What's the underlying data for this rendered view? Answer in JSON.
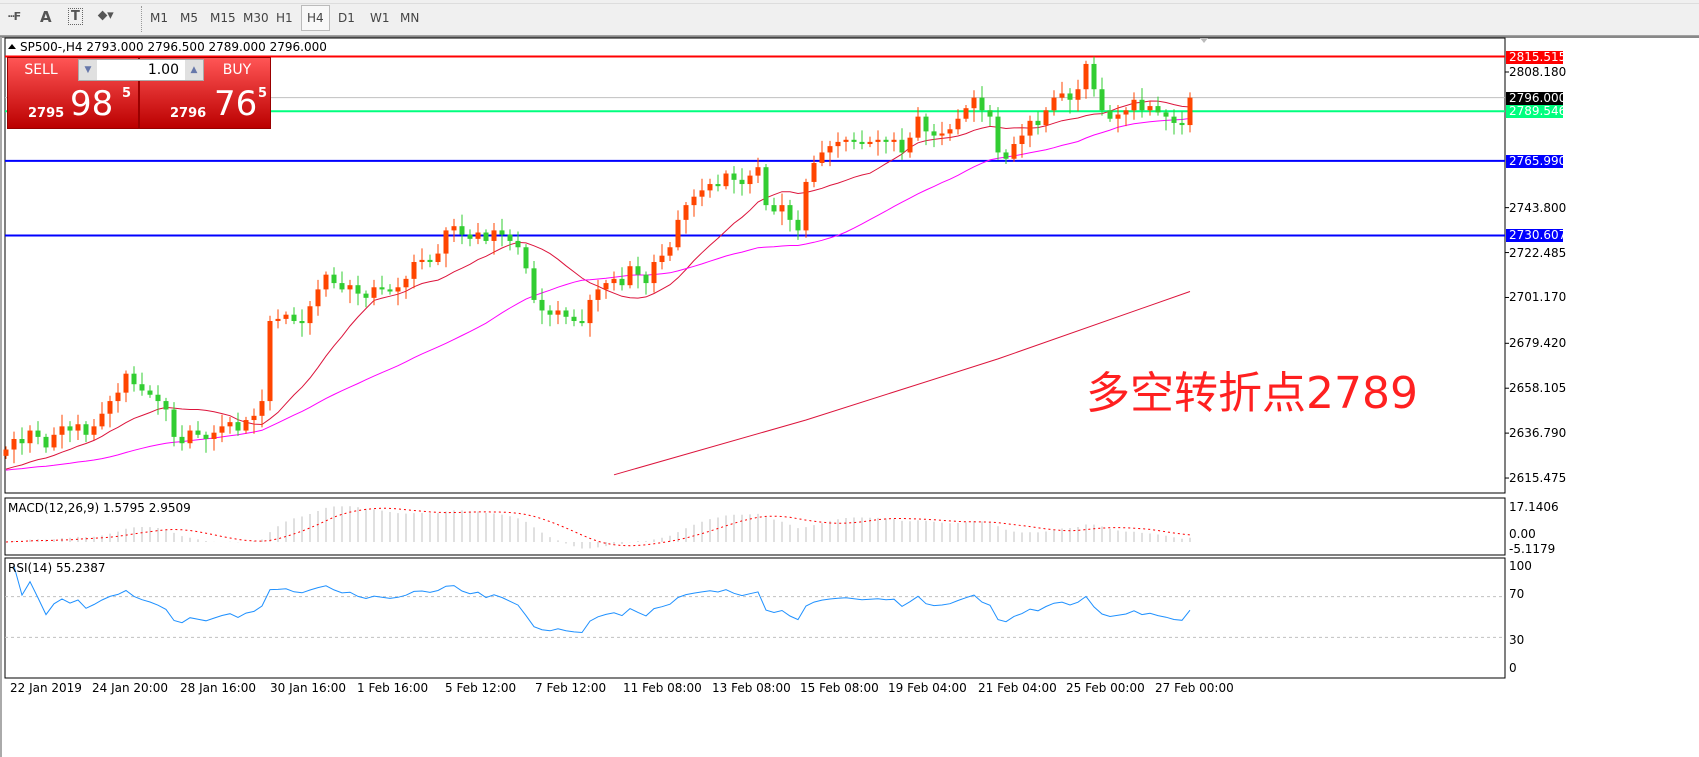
{
  "toolbar": {
    "icons": [
      "period-separator-icon",
      "text-icon",
      "text-label-icon",
      "arrows-icon"
    ],
    "text_icon_label": "A",
    "timeframes": [
      "M1",
      "M5",
      "M15",
      "M30",
      "H1",
      "H4",
      "D1",
      "W1",
      "MN"
    ],
    "active_timeframe": "H4"
  },
  "chart": {
    "title": "SP500-,H4  2793.000 2796.500 2789.000 2796.000",
    "annotation": "多空转折点2789",
    "colors": {
      "bull": "#ff4500",
      "bear": "#32cd32",
      "ma_fast": "#dc143c",
      "ma_mid": "#ff00ff",
      "ma_long": "#dc143c",
      "macd_signal": "#ff0000",
      "rsi": "#1e90ff"
    }
  },
  "trade_panel": {
    "sell_label": "SELL",
    "buy_label": "BUY",
    "quantity": "1.00",
    "sell_small": "2795",
    "sell_big": "98",
    "sell_sup": "5",
    "buy_small": "2796",
    "buy_big": "76",
    "buy_sup": "5"
  },
  "price_axis": {
    "ticks": [
      "2808.180",
      "2743.800",
      "2722.485",
      "2701.170",
      "2679.420",
      "2658.105",
      "2636.790",
      "2615.475"
    ],
    "levels": [
      {
        "label": "2815.515",
        "price": 2815.515,
        "color": "#ff0000"
      },
      {
        "label": "2796.000",
        "price": 2796.0,
        "color": "#000000",
        "line": "#c0c0c0"
      },
      {
        "label": "2789.546",
        "price": 2789.546,
        "color": "#00ff7f"
      },
      {
        "label": "2765.990",
        "price": 2765.99,
        "color": "#0000ff"
      },
      {
        "label": "2730.607",
        "price": 2730.607,
        "color": "#0000ff"
      }
    ]
  },
  "time_axis": [
    "22 Jan 2019",
    "24 Jan 20:00",
    "28 Jan 16:00",
    "30 Jan 16:00",
    "1 Feb 16:00",
    "5 Feb 12:00",
    "7 Feb 12:00",
    "11 Feb 08:00",
    "13 Feb 08:00",
    "15 Feb 08:00",
    "19 Feb 04:00",
    "21 Feb 04:00",
    "25 Feb 00:00",
    "27 Feb 00:00"
  ],
  "macd": {
    "title": "MACD(12,26,9) 1.5795 2.9509",
    "top_label": "17.1406",
    "zero_label": "0.00",
    "bottom_label": "-5.1179"
  },
  "rsi": {
    "title": "RSI(14) 55.2387",
    "levels": [
      "100",
      "70",
      "30",
      "0"
    ]
  },
  "chart_data": {
    "type": "candlestick",
    "symbol": "SP500-",
    "timeframe": "H4",
    "ylim": [
      2605,
      2822
    ],
    "closes": [
      2629,
      2634,
      2632,
      2638,
      2635,
      2630,
      2636,
      2640,
      2638,
      2641,
      2636,
      2640,
      2646,
      2652,
      2656,
      2665,
      2660,
      2657,
      2655,
      2652,
      2648,
      2635,
      2632,
      2638,
      2636,
      2634,
      2637,
      2640,
      2642,
      2638,
      2643,
      2645,
      2652,
      2690,
      2691,
      2693,
      2690,
      2689,
      2697,
      2705,
      2712,
      2708,
      2705,
      2707,
      2703,
      2701,
      2706,
      2705,
      2704,
      2706,
      2710,
      2718,
      2719,
      2718,
      2722,
      2733,
      2735,
      2731,
      2729,
      2732,
      2728,
      2733,
      2731,
      2728,
      2725,
      2715,
      2700,
      2695,
      2693,
      2695,
      2692,
      2690,
      2689,
      2700,
      2705,
      2708,
      2710,
      2707,
      2716,
      2712,
      2708,
      2718,
      2721,
      2725,
      2738,
      2745,
      2749,
      2752,
      2755,
      2754,
      2760,
      2757,
      2755,
      2759,
      2763,
      2745,
      2742,
      2745,
      2738,
      2733,
      2756,
      2765,
      2770,
      2773,
      2775,
      2776,
      2775,
      2774,
      2775,
      2776,
      2775,
      2776,
      2770,
      2777,
      2787,
      2780,
      2778,
      2779,
      2781,
      2786,
      2791,
      2796,
      2790,
      2787,
      2770,
      2767,
      2774,
      2778,
      2785,
      2783,
      2790,
      2796,
      2798,
      2795,
      2800,
      2812,
      2800,
      2790,
      2786,
      2788,
      2790,
      2795,
      2790,
      2792,
      2789,
      2787,
      2784,
      2783,
      2796
    ],
    "ma_long": [
      [
        76,
        2617
      ],
      [
        100,
        2643
      ],
      [
        124,
        2672
      ],
      [
        148,
        2704
      ]
    ]
  }
}
